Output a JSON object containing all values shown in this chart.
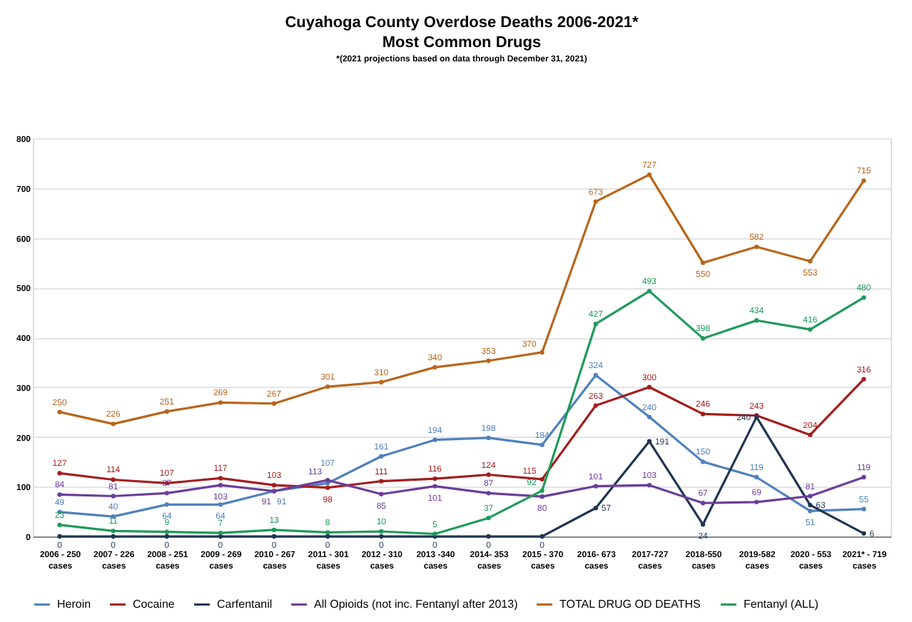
{
  "chart_data": {
    "type": "line",
    "title": "Cuyahoga County Overdose Deaths 2006-2021*",
    "subtitle": "Most Common Drugs",
    "annotations": [
      "*(2021 projections based on data through December 31, 2021)"
    ],
    "categories": [
      "2006 - 250 cases",
      "2007 - 226 cases",
      "2008 - 251 cases",
      "2009 - 269 cases",
      "2010 - 267 cases",
      "2011 - 301 cases",
      "2012 - 310 cases",
      "2013 -340 cases",
      "2014- 353 cases",
      "2015 - 370 cases",
      "2016- 673 cases",
      "2017-727 cases",
      "2018-550 cases",
      "2019-582 cases",
      "2020 - 553 cases",
      "2021* - 719 cases"
    ],
    "series": [
      {
        "name": "Heroin",
        "color": "#4f81bd",
        "values": [
          49,
          40,
          64,
          64,
          91,
          107,
          161,
          194,
          198,
          184,
          324,
          240,
          150,
          119,
          51,
          55
        ]
      },
      {
        "name": "Cocaine",
        "color": "#a31d1d",
        "values": [
          127,
          114,
          107,
          117,
          103,
          98,
          111,
          116,
          124,
          115,
          263,
          300,
          246,
          243,
          204,
          316
        ]
      },
      {
        "name": "Carfentanil",
        "color": "#1f3552",
        "values": [
          0,
          0,
          0,
          0,
          0,
          0,
          0,
          0,
          0,
          0,
          57,
          191,
          24,
          240,
          63,
          6
        ]
      },
      {
        "name": "All Opioids (not inc. Fentanyl after 2013)",
        "color": "#6a3d9a",
        "values": [
          84,
          81,
          87,
          103,
          91,
          113,
          85,
          101,
          87,
          80,
          101,
          103,
          67,
          69,
          81,
          119
        ]
      },
      {
        "name": "TOTAL DRUG OD DEATHS",
        "color": "#b8651b",
        "values": [
          250,
          226,
          251,
          269,
          267,
          301,
          310,
          340,
          353,
          370,
          673,
          727,
          550,
          582,
          553,
          715
        ]
      },
      {
        "name": "Fentanyl (ALL)",
        "color": "#1f9a5a",
        "values": [
          23,
          11,
          9,
          7,
          13,
          8,
          10,
          5,
          37,
          92,
          427,
          493,
          398,
          434,
          416,
          480
        ]
      }
    ],
    "ylim": [
      0,
      800
    ],
    "yticks": [
      0,
      100,
      200,
      300,
      400,
      500,
      600,
      700,
      800
    ],
    "grid": "y",
    "legend": "bottom",
    "marker": "circle",
    "line_style": "solid",
    "data_labels": true
  }
}
